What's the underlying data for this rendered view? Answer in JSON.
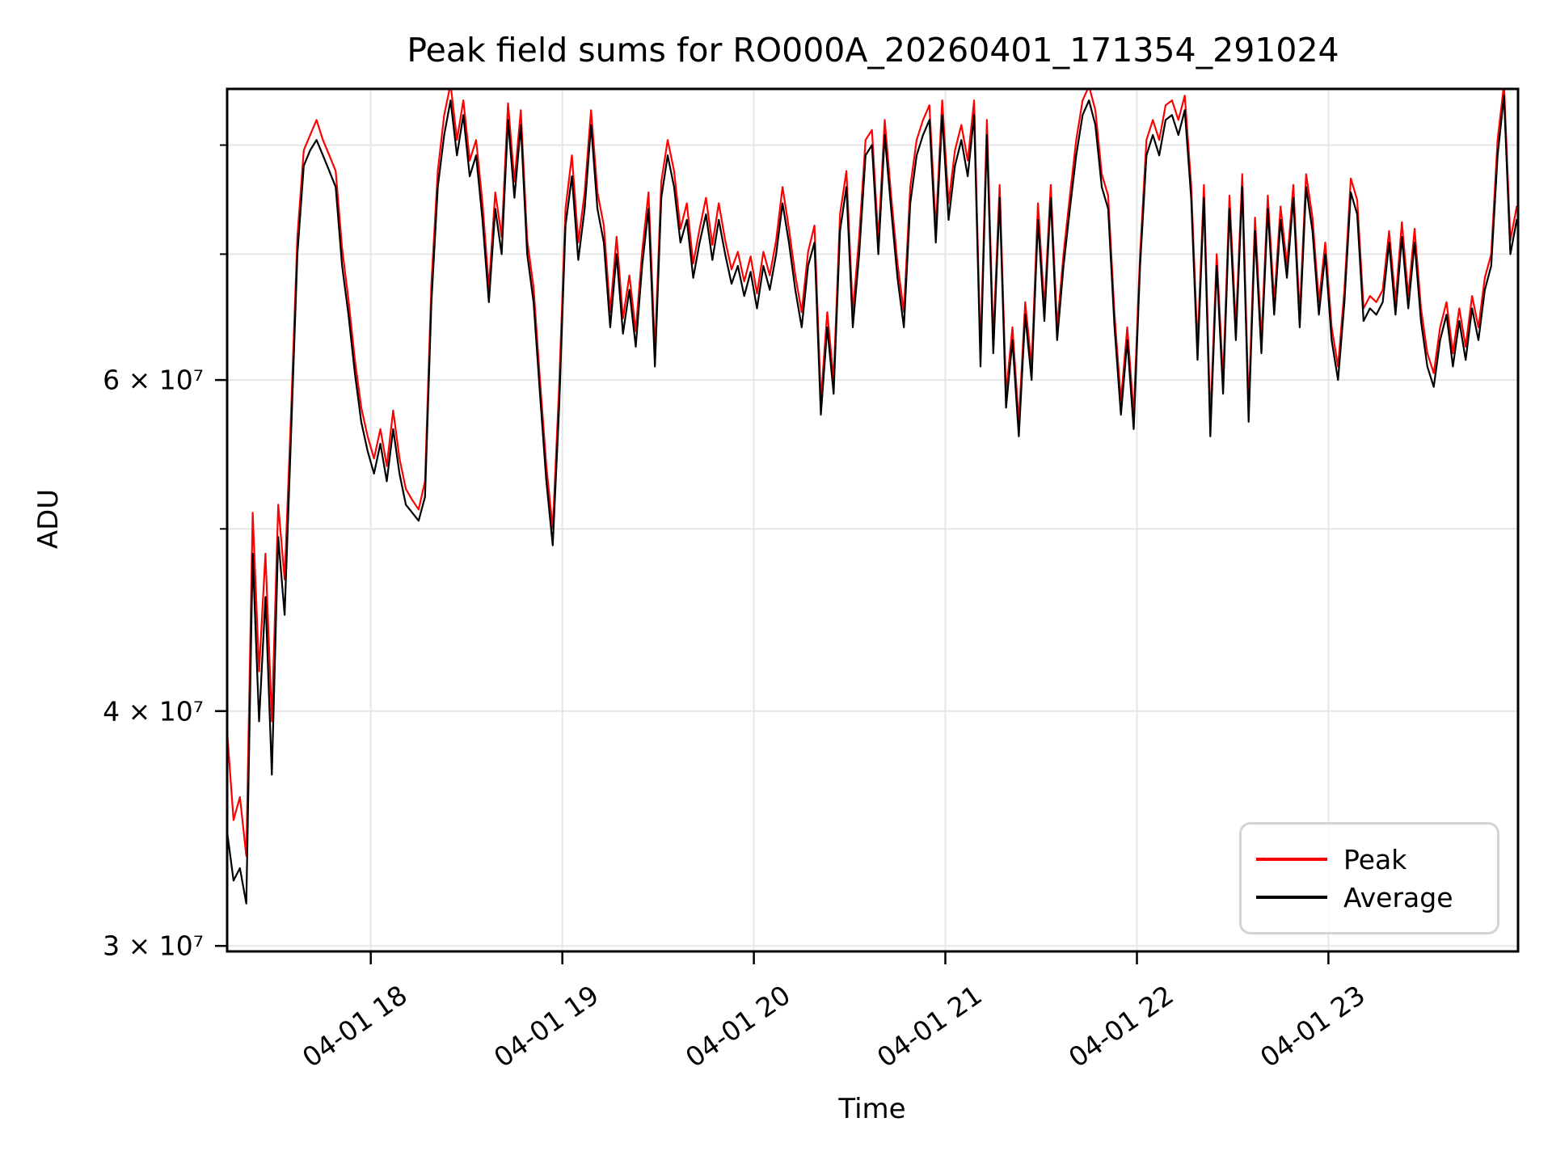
{
  "title": "Peak field sums for RO000A_20260401_171354_291024",
  "axes": {
    "x_label": "Time",
    "y_label": "ADU",
    "x_ticks": [
      {
        "hour": 18,
        "label": "04-01 18"
      },
      {
        "hour": 19,
        "label": "04-01 19"
      },
      {
        "hour": 20,
        "label": "04-01 20"
      },
      {
        "hour": 21,
        "label": "04-01 21"
      },
      {
        "hour": 22,
        "label": "04-01 22"
      },
      {
        "hour": 23,
        "label": "04-01 23"
      }
    ],
    "y_major_ticks": [
      {
        "value_e7": 3,
        "label": "3 × 10⁷"
      },
      {
        "value_e7": 4,
        "label": "4 × 10⁷"
      },
      {
        "value_e7": 6,
        "label": "6 × 10⁷"
      }
    ],
    "y_minor_gridlines_e7": [
      5,
      7,
      8
    ]
  },
  "legend": {
    "items": [
      {
        "label": "Peak",
        "color": "#ff0000"
      },
      {
        "label": "Average",
        "color": "#000000"
      }
    ]
  },
  "colors": {
    "background": "#ffffff",
    "grid": "#e6e6e6",
    "spine": "#000000",
    "peak": "#ff0000",
    "average": "#000000"
  },
  "chart_data": {
    "type": "line",
    "title": "Peak field sums for RO000A_20260401_171354_291024",
    "xlabel": "Time",
    "ylabel": "ADU",
    "y_scale": "log",
    "unit": "ADU",
    "value_scale": 10000000,
    "x_unit": "decimal hours on 2026-04-01",
    "x_start_hours": 17.25,
    "x_step_hours": 0.0333333,
    "xlim_hours": [
      17.25,
      23.99
    ],
    "ylim_e7": [
      2.98,
      8.57
    ],
    "x_tick_hours": [
      18,
      19,
      20,
      21,
      22,
      23
    ],
    "grid": true,
    "legend_position": "lower right",
    "series": [
      {
        "name": "Peak",
        "color": "#ff0000",
        "values_e7": [
          3.9,
          3.5,
          3.6,
          3.35,
          5.1,
          4.2,
          4.85,
          3.95,
          5.15,
          4.7,
          5.75,
          7.15,
          7.95,
          8.1,
          8.25,
          8.05,
          7.9,
          7.75,
          7.05,
          6.62,
          6.15,
          5.8,
          5.6,
          5.45,
          5.65,
          5.4,
          5.78,
          5.45,
          5.25,
          5.18,
          5.12,
          5.3,
          6.75,
          7.75,
          8.3,
          8.62,
          8.05,
          8.45,
          7.85,
          8.05,
          7.45,
          6.72,
          7.55,
          7.15,
          8.42,
          7.65,
          8.35,
          7.12,
          6.72,
          6.0,
          5.4,
          5.0,
          5.95,
          7.4,
          7.9,
          7.1,
          7.55,
          8.35,
          7.55,
          7.25,
          6.52,
          7.15,
          6.47,
          6.82,
          6.37,
          7.02,
          7.55,
          6.22,
          7.65,
          8.05,
          7.75,
          7.22,
          7.45,
          6.92,
          7.22,
          7.5,
          7.08,
          7.45,
          7.12,
          6.87,
          7.02,
          6.77,
          6.98,
          6.67,
          7.02,
          6.82,
          7.12,
          7.6,
          7.22,
          6.82,
          6.52,
          7.02,
          7.25,
          5.85,
          6.52,
          6.0,
          7.35,
          7.75,
          6.52,
          7.15,
          8.05,
          8.15,
          7.12,
          8.25,
          7.52,
          6.92,
          6.52,
          7.6,
          8.05,
          8.25,
          8.4,
          7.22,
          8.45,
          7.45,
          7.95,
          8.2,
          7.85,
          8.45,
          6.2,
          8.25,
          6.3,
          7.62,
          5.9,
          6.4,
          5.7,
          6.6,
          6.1,
          7.45,
          6.55,
          7.62,
          6.4,
          7.0,
          7.52,
          8.05,
          8.45,
          8.6,
          8.35,
          7.72,
          7.52,
          6.5,
          5.85,
          6.4,
          5.75,
          7.0,
          8.05,
          8.25,
          8.05,
          8.4,
          8.45,
          8.25,
          8.5,
          7.62,
          6.25,
          7.62,
          5.7,
          7.0,
          6.0,
          7.52,
          6.4,
          7.72,
          5.8,
          7.32,
          6.3,
          7.52,
          6.6,
          7.42,
          6.9,
          7.62,
          6.5,
          7.72,
          7.32,
          6.6,
          7.1,
          6.4,
          6.1,
          6.7,
          7.68,
          7.48,
          6.55,
          6.65,
          6.6,
          6.7,
          7.2,
          6.6,
          7.28,
          6.65,
          7.22,
          6.55,
          6.2,
          6.05,
          6.4,
          6.6,
          6.2,
          6.55,
          6.25,
          6.65,
          6.4,
          6.8,
          7.0,
          8.05,
          8.62,
          7.12,
          7.42
        ]
      },
      {
        "name": "Average",
        "color": "#000000",
        "values_e7": [
          3.45,
          3.25,
          3.3,
          3.16,
          4.85,
          3.95,
          4.6,
          3.7,
          4.95,
          4.5,
          5.6,
          7.0,
          7.8,
          7.95,
          8.05,
          7.9,
          7.75,
          7.6,
          6.9,
          6.5,
          6.05,
          5.7,
          5.5,
          5.35,
          5.55,
          5.3,
          5.65,
          5.35,
          5.15,
          5.1,
          5.05,
          5.2,
          6.6,
          7.6,
          8.1,
          8.45,
          7.9,
          8.3,
          7.7,
          7.9,
          7.3,
          6.6,
          7.4,
          7.0,
          8.25,
          7.5,
          8.2,
          7.0,
          6.6,
          5.9,
          5.3,
          4.9,
          5.8,
          7.25,
          7.7,
          6.95,
          7.4,
          8.2,
          7.4,
          7.1,
          6.4,
          7.0,
          6.35,
          6.7,
          6.25,
          6.9,
          7.4,
          6.1,
          7.5,
          7.9,
          7.6,
          7.1,
          7.3,
          6.8,
          7.1,
          7.35,
          6.95,
          7.3,
          7.0,
          6.75,
          6.9,
          6.65,
          6.85,
          6.55,
          6.9,
          6.7,
          7.0,
          7.45,
          7.1,
          6.7,
          6.4,
          6.9,
          7.1,
          5.75,
          6.4,
          5.9,
          7.2,
          7.6,
          6.4,
          7.0,
          7.9,
          8.0,
          7.0,
          8.1,
          7.4,
          6.8,
          6.4,
          7.45,
          7.9,
          8.1,
          8.25,
          7.1,
          8.3,
          7.3,
          7.8,
          8.05,
          7.7,
          8.3,
          6.1,
          8.1,
          6.2,
          7.5,
          5.8,
          6.3,
          5.6,
          6.5,
          6.0,
          7.3,
          6.45,
          7.5,
          6.3,
          6.9,
          7.4,
          7.9,
          8.3,
          8.45,
          8.2,
          7.6,
          7.4,
          6.4,
          5.75,
          6.3,
          5.65,
          6.9,
          7.9,
          8.1,
          7.9,
          8.25,
          8.3,
          8.1,
          8.35,
          7.5,
          6.15,
          7.5,
          5.6,
          6.9,
          5.9,
          7.4,
          6.3,
          7.6,
          5.7,
          7.2,
          6.2,
          7.4,
          6.5,
          7.3,
          6.8,
          7.5,
          6.4,
          7.6,
          7.2,
          6.5,
          7.0,
          6.3,
          6.0,
          6.6,
          7.55,
          7.35,
          6.45,
          6.55,
          6.5,
          6.6,
          7.1,
          6.5,
          7.15,
          6.55,
          7.1,
          6.45,
          6.1,
          5.95,
          6.3,
          6.5,
          6.1,
          6.45,
          6.15,
          6.55,
          6.3,
          6.7,
          6.9,
          7.9,
          8.5,
          7.0,
          7.3
        ]
      }
    ]
  }
}
